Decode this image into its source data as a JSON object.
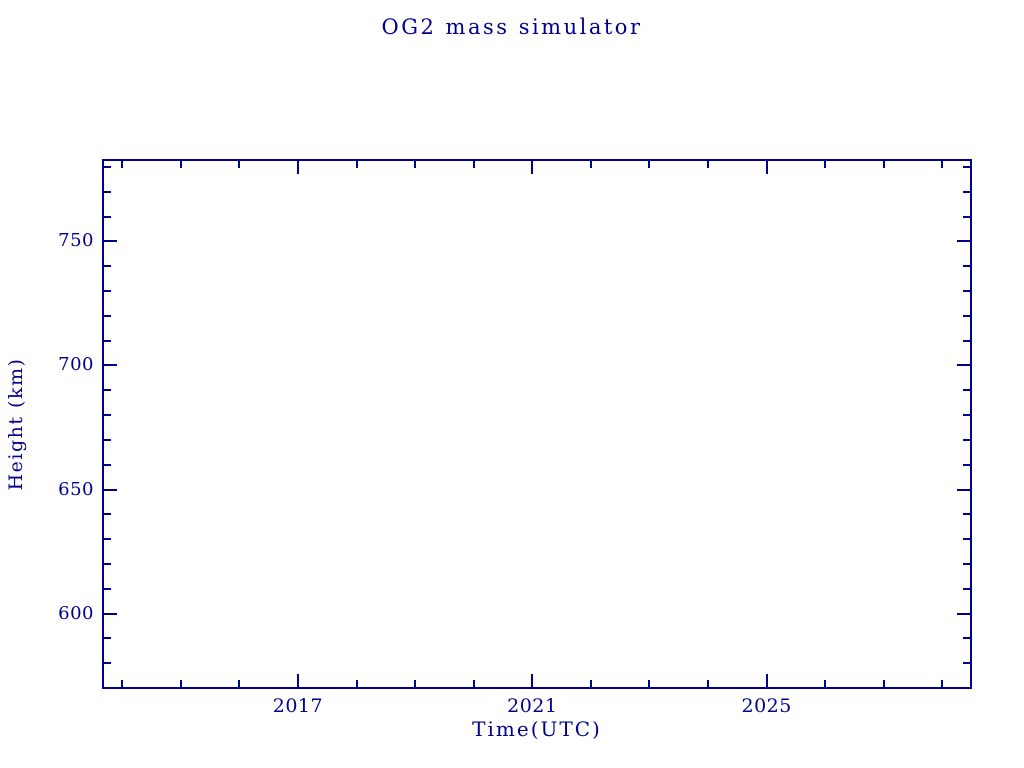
{
  "chart_data": {
    "type": "line",
    "title": "OG2 mass simulator",
    "xlabel": "Time(UTC)",
    "ylabel": "Height (km)",
    "xlim": [
      2013.69,
      2028.47
    ],
    "ylim": [
      570.4,
      782.4
    ],
    "x_ticks": {
      "major": [
        2017,
        2021,
        2025
      ],
      "major_labels": [
        "2017",
        "2021",
        "2025"
      ],
      "minor": [
        2014,
        2015,
        2016,
        2018,
        2019,
        2020,
        2022,
        2023,
        2024,
        2026,
        2027,
        2028
      ]
    },
    "y_ticks": {
      "major": [
        600,
        650,
        700,
        750
      ],
      "major_labels": [
        "600",
        "650",
        "700",
        "750"
      ],
      "minor": [
        580,
        590,
        610,
        620,
        630,
        640,
        660,
        670,
        680,
        690,
        710,
        720,
        730,
        740,
        760,
        770,
        780
      ]
    },
    "series": [],
    "grid": false,
    "legend": false,
    "tick_direction": "in",
    "box_frame": true,
    "axis_color": "#00008B",
    "background_color": "#FFFFFF"
  }
}
